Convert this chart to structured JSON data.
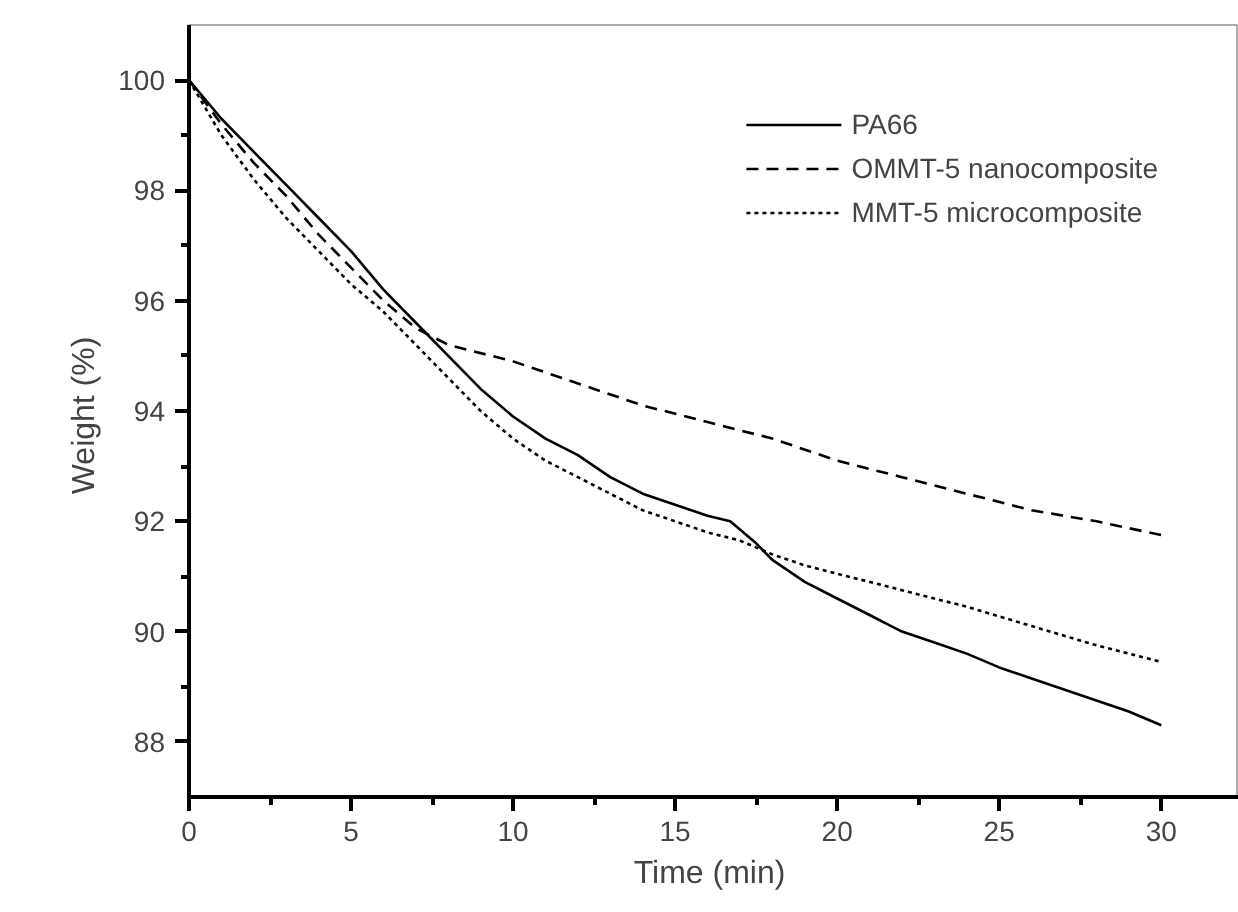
{
  "chart_data": {
    "type": "line",
    "xlabel": "Time  (min)",
    "ylabel": "Weight  (%)",
    "xlim": [
      0,
      32.4
    ],
    "ylim": [
      87,
      101
    ],
    "xticks": [
      0,
      5,
      10,
      15,
      20,
      25,
      30
    ],
    "yticks": [
      88,
      90,
      92,
      94,
      96,
      98,
      100
    ],
    "legend": "top right",
    "grid": false,
    "marker": "none",
    "series": [
      {
        "name": "PA66",
        "color": "#000000",
        "line_style": "solid",
        "x": [
          0,
          1,
          2,
          3,
          4,
          5,
          6,
          7,
          8,
          9,
          10,
          11,
          12,
          13,
          14,
          15,
          16,
          16.7,
          17.5,
          18,
          19,
          20,
          21,
          21.5,
          22,
          23,
          24,
          25,
          26,
          27,
          28,
          29,
          30
        ],
        "values": [
          100,
          99.3,
          98.7,
          98.1,
          97.5,
          96.9,
          96.2,
          95.6,
          95.0,
          94.4,
          93.9,
          93.5,
          93.2,
          92.8,
          92.5,
          92.3,
          92.1,
          92.0,
          91.6,
          91.3,
          90.9,
          90.6,
          90.3,
          90.15,
          90.0,
          89.8,
          89.6,
          89.35,
          89.15,
          88.95,
          88.75,
          88.55,
          88.3
        ]
      },
      {
        "name": "OMMT-5 nanocomposite",
        "color": "#000000",
        "line_style": "dashed",
        "x": [
          0,
          1,
          2,
          3,
          4,
          5,
          6,
          7,
          8,
          10,
          12,
          14,
          16,
          18,
          20,
          22,
          24,
          26,
          28,
          30
        ],
        "values": [
          100,
          99.2,
          98.5,
          97.9,
          97.2,
          96.6,
          96.0,
          95.5,
          95.2,
          94.9,
          94.5,
          94.1,
          93.8,
          93.5,
          93.1,
          92.8,
          92.5,
          92.2,
          92.0,
          91.75
        ]
      },
      {
        "name": "MMT-5 microcomposite",
        "color": "#000000",
        "line_style": "dotted",
        "x": [
          0,
          1,
          2,
          3,
          4,
          5,
          6,
          7,
          8,
          9,
          10,
          11,
          12,
          13,
          14,
          15,
          16,
          17,
          18,
          19,
          20,
          22,
          24,
          26,
          28,
          30
        ],
        "values": [
          100,
          99.0,
          98.2,
          97.5,
          96.9,
          96.3,
          95.8,
          95.2,
          94.6,
          94.0,
          93.5,
          93.1,
          92.8,
          92.5,
          92.2,
          92.0,
          91.8,
          91.65,
          91.4,
          91.2,
          91.05,
          90.75,
          90.45,
          90.1,
          89.75,
          89.45
        ]
      }
    ]
  }
}
